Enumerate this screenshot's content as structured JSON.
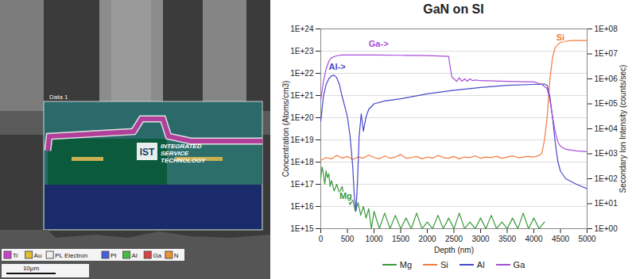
{
  "sem_image": {
    "label": "Data 1",
    "watermark": [
      "IST",
      "INTEGRATED",
      "SERVICE",
      "TECHNOLOGY"
    ],
    "edx_legend": [
      "Ti",
      "Au",
      "PL Electron",
      "Pt",
      "Al",
      "Ga",
      "N"
    ],
    "scale_bar": "10μm"
  },
  "chart_data": {
    "type": "line",
    "title": "GaN on SI",
    "xlabel": "Depth (nm)",
    "ylabel": "Concentration (Atoms/cm3)",
    "y2label": "Secondary Ion Intensity (counts/sec)",
    "log": "y",
    "grid": true,
    "legend": "bottom",
    "xlim": [
      0,
      5000
    ],
    "xticks": [
      0,
      500,
      1000,
      1500,
      2000,
      2500,
      3000,
      3500,
      4000,
      4500,
      5000
    ],
    "ylim": [
      1000000000000000.0,
      1e+24
    ],
    "yticks": [
      {
        "value": 1000000000000000.0,
        "label": "1E+15"
      },
      {
        "value": 1e+16,
        "label": "1E+16"
      },
      {
        "value": 1e+17,
        "label": "1E+17"
      },
      {
        "value": 1e+18,
        "label": "1E+18"
      },
      {
        "value": 1e+19,
        "label": "1E+19"
      },
      {
        "value": 1e+20,
        "label": "1E+20"
      },
      {
        "value": 1e+21,
        "label": "1E+21"
      },
      {
        "value": 1e+22,
        "label": "1E+22"
      },
      {
        "value": 1e+23,
        "label": "1E+23"
      },
      {
        "value": 1e+24,
        "label": "1E+24"
      }
    ],
    "y2lim": [
      1,
      100000000.0
    ],
    "y2ticks": [
      {
        "value": 1,
        "label": "1E+00"
      },
      {
        "value": 10,
        "label": "1E+01"
      },
      {
        "value": 100,
        "label": "1E+02"
      },
      {
        "value": 1000,
        "label": "1E+03"
      },
      {
        "value": 10000,
        "label": "1E+04"
      },
      {
        "value": 100000,
        "label": "1E+05"
      },
      {
        "value": 1000000,
        "label": "1E+06"
      },
      {
        "value": 10000000,
        "label": "1E+07"
      },
      {
        "value": 100000000,
        "label": "1E+08"
      }
    ],
    "series": [
      {
        "name": "Mg",
        "color": "#3a9a3a",
        "x": [
          0,
          25,
          50,
          75,
          100,
          125,
          150,
          175,
          200,
          250,
          300,
          350,
          400,
          450,
          500,
          550,
          600,
          650,
          700,
          750,
          800,
          850,
          900,
          950,
          1000,
          1100,
          1200,
          1300,
          1400,
          1500,
          1600,
          1700,
          1800,
          1900,
          2000,
          2100,
          2200,
          2300,
          2400,
          2500,
          2600,
          2700,
          2800,
          2900,
          3000,
          3100,
          3200,
          3300,
          3400,
          3500,
          3600,
          3700,
          3800,
          3900,
          4000,
          4100,
          4200
        ],
        "values": [
          2e+17,
          6e+17,
          3e+17,
          1e+17,
          4e+17,
          2e+17,
          3e+17,
          8e+16,
          1.5e+17,
          5e+16,
          1e+17,
          4e+16,
          8e+16,
          2e+16,
          3e+16,
          1.2e+16,
          2e+16,
          6000000000000000.0,
          1.5e+16,
          4000000000000000.0,
          1e+16,
          3000000000000000.0,
          8000000000000000.0,
          1000000000000000.0,
          6000000000000000.0,
          1000000000000000.0,
          5000000000000000.0,
          1000000000000000.0,
          4000000000000000.0,
          1000000000000000.0,
          3000000000000000.0,
          1000000000000000.0,
          5000000000000000.0,
          1000000000000000.0,
          2000000000000000.0,
          1000000000000000.0,
          4000000000000000.0,
          1000000000000000.0,
          3000000000000000.0,
          1000000000000000.0,
          5000000000000000.0,
          1000000000000000.0,
          2000000000000000.0,
          1000000000000000.0,
          3000000000000000.0,
          1000000000000000.0,
          4000000000000000.0,
          1000000000000000.0,
          2000000000000000.0,
          1000000000000000.0,
          3000000000000000.0,
          1000000000000000.0,
          5000000000000000.0,
          1000000000000000.0,
          3000000000000000.0,
          1000000000000000.0,
          2000000000000000.0
        ]
      },
      {
        "name": "Si",
        "color": "#f07a3c",
        "x": [
          0,
          100,
          200,
          300,
          400,
          500,
          600,
          700,
          800,
          900,
          1000,
          1100,
          1200,
          1300,
          1400,
          1500,
          1600,
          1700,
          1800,
          1900,
          2000,
          2100,
          2200,
          2300,
          2400,
          2500,
          2600,
          2700,
          2800,
          2900,
          3000,
          3100,
          3200,
          3300,
          3400,
          3500,
          3600,
          3700,
          3800,
          3900,
          4000,
          4100,
          4150,
          4200,
          4250,
          4300,
          4350,
          4400,
          4500,
          4600,
          4700,
          4800,
          4900,
          5000
        ],
        "values": [
          1.2e+18,
          1.6e+18,
          1.4e+18,
          2e+18,
          1.5e+18,
          1.8e+18,
          1.3e+18,
          1.7e+18,
          1.5e+18,
          2.1e+18,
          1.6e+18,
          1.4e+18,
          1.9e+18,
          1.5e+18,
          1.7e+18,
          2.2e+18,
          1.5e+18,
          1.6e+18,
          1.8e+18,
          1.4e+18,
          1.7e+18,
          1.5e+18,
          2e+18,
          1.6e+18,
          1.5e+18,
          1.8e+18,
          1.4e+18,
          1.7e+18,
          1.6e+18,
          1.9e+18,
          1.5e+18,
          1.7e+18,
          1.6e+18,
          1.8e+18,
          1.5e+18,
          1.7e+18,
          1.9e+18,
          1.6e+18,
          1.7e+18,
          1.8e+18,
          1.7e+18,
          2e+18,
          2.5e+18,
          1e+19,
          1e+20,
          5e+21,
          5e+22,
          1.5e+23,
          2.5e+23,
          2.8e+23,
          3e+23,
          3e+23,
          3e+23,
          3e+23
        ]
      },
      {
        "name": "Al",
        "color": "#4646cc",
        "axis": "y2",
        "x": [
          0,
          50,
          100,
          150,
          200,
          250,
          300,
          350,
          400,
          450,
          500,
          550,
          600,
          630,
          660,
          690,
          720,
          760,
          800,
          850,
          900,
          1000,
          1200,
          1500,
          2000,
          2500,
          3000,
          3500,
          4000,
          4200,
          4250,
          4300,
          4350,
          4400,
          4450,
          4500,
          4600,
          4800,
          5000
        ],
        "values": [
          20000.0,
          200000.0,
          600000.0,
          1000000.0,
          1300000.0,
          1400000.0,
          1100000.0,
          600000.0,
          200000.0,
          80000.0,
          30000.0,
          5000.0,
          300.0,
          20.0,
          5,
          80.0,
          5000.0,
          40000.0,
          8000.0,
          30000.0,
          60000.0,
          100000.0,
          130000.0,
          160000.0,
          250000.0,
          350000.0,
          450000.0,
          550000.0,
          600000.0,
          620000.0,
          550000.0,
          200000.0,
          30000.0,
          3000.0,
          500.0,
          200.0,
          100.0,
          60.0,
          40.0
        ]
      },
      {
        "name": "Ga",
        "color": "#a64fd6",
        "axis": "y2",
        "x": [
          0,
          50,
          100,
          150,
          200,
          300,
          400,
          500,
          600,
          800,
          1000,
          1500,
          2000,
          2200,
          2400,
          2430,
          2460,
          2500,
          2550,
          2600,
          2650,
          2700,
          2750,
          2800,
          2850,
          2900,
          3000,
          3500,
          4000,
          4150,
          4250,
          4300,
          4350,
          4400,
          4450,
          4500,
          4600,
          4800,
          5000
        ],
        "values": [
          150000.0,
          800000.0,
          2500000.0,
          5000000.0,
          7000000.0,
          8500000.0,
          9000000.0,
          9000000.0,
          9000000.0,
          9000000.0,
          9000000.0,
          8800000.0,
          8500000.0,
          8300000.0,
          8000000.0,
          3000000.0,
          1200000.0,
          1000000.0,
          800000.0,
          1100000.0,
          800000.0,
          1000000.0,
          800000.0,
          1000000.0,
          850000.0,
          900000.0,
          850000.0,
          800000.0,
          750000.0,
          600000.0,
          400000.0,
          150000.0,
          30000.0,
          8000.0,
          3000.0,
          2000.0,
          1500.0,
          1300.0,
          1200.0
        ]
      }
    ],
    "annotations": [
      {
        "text": "Ga->",
        "series": "Ga",
        "x": 900,
        "y": 25000000.0
      },
      {
        "text": "Al->",
        "series": "Al",
        "x": 150,
        "y": 3000000.0
      },
      {
        "text": "Si",
        "series": "Si",
        "x": 4420,
        "y": 4e+23
      },
      {
        "text": "Mg",
        "series": "Mg",
        "x": 350,
        "y": 3e+16
      }
    ]
  }
}
